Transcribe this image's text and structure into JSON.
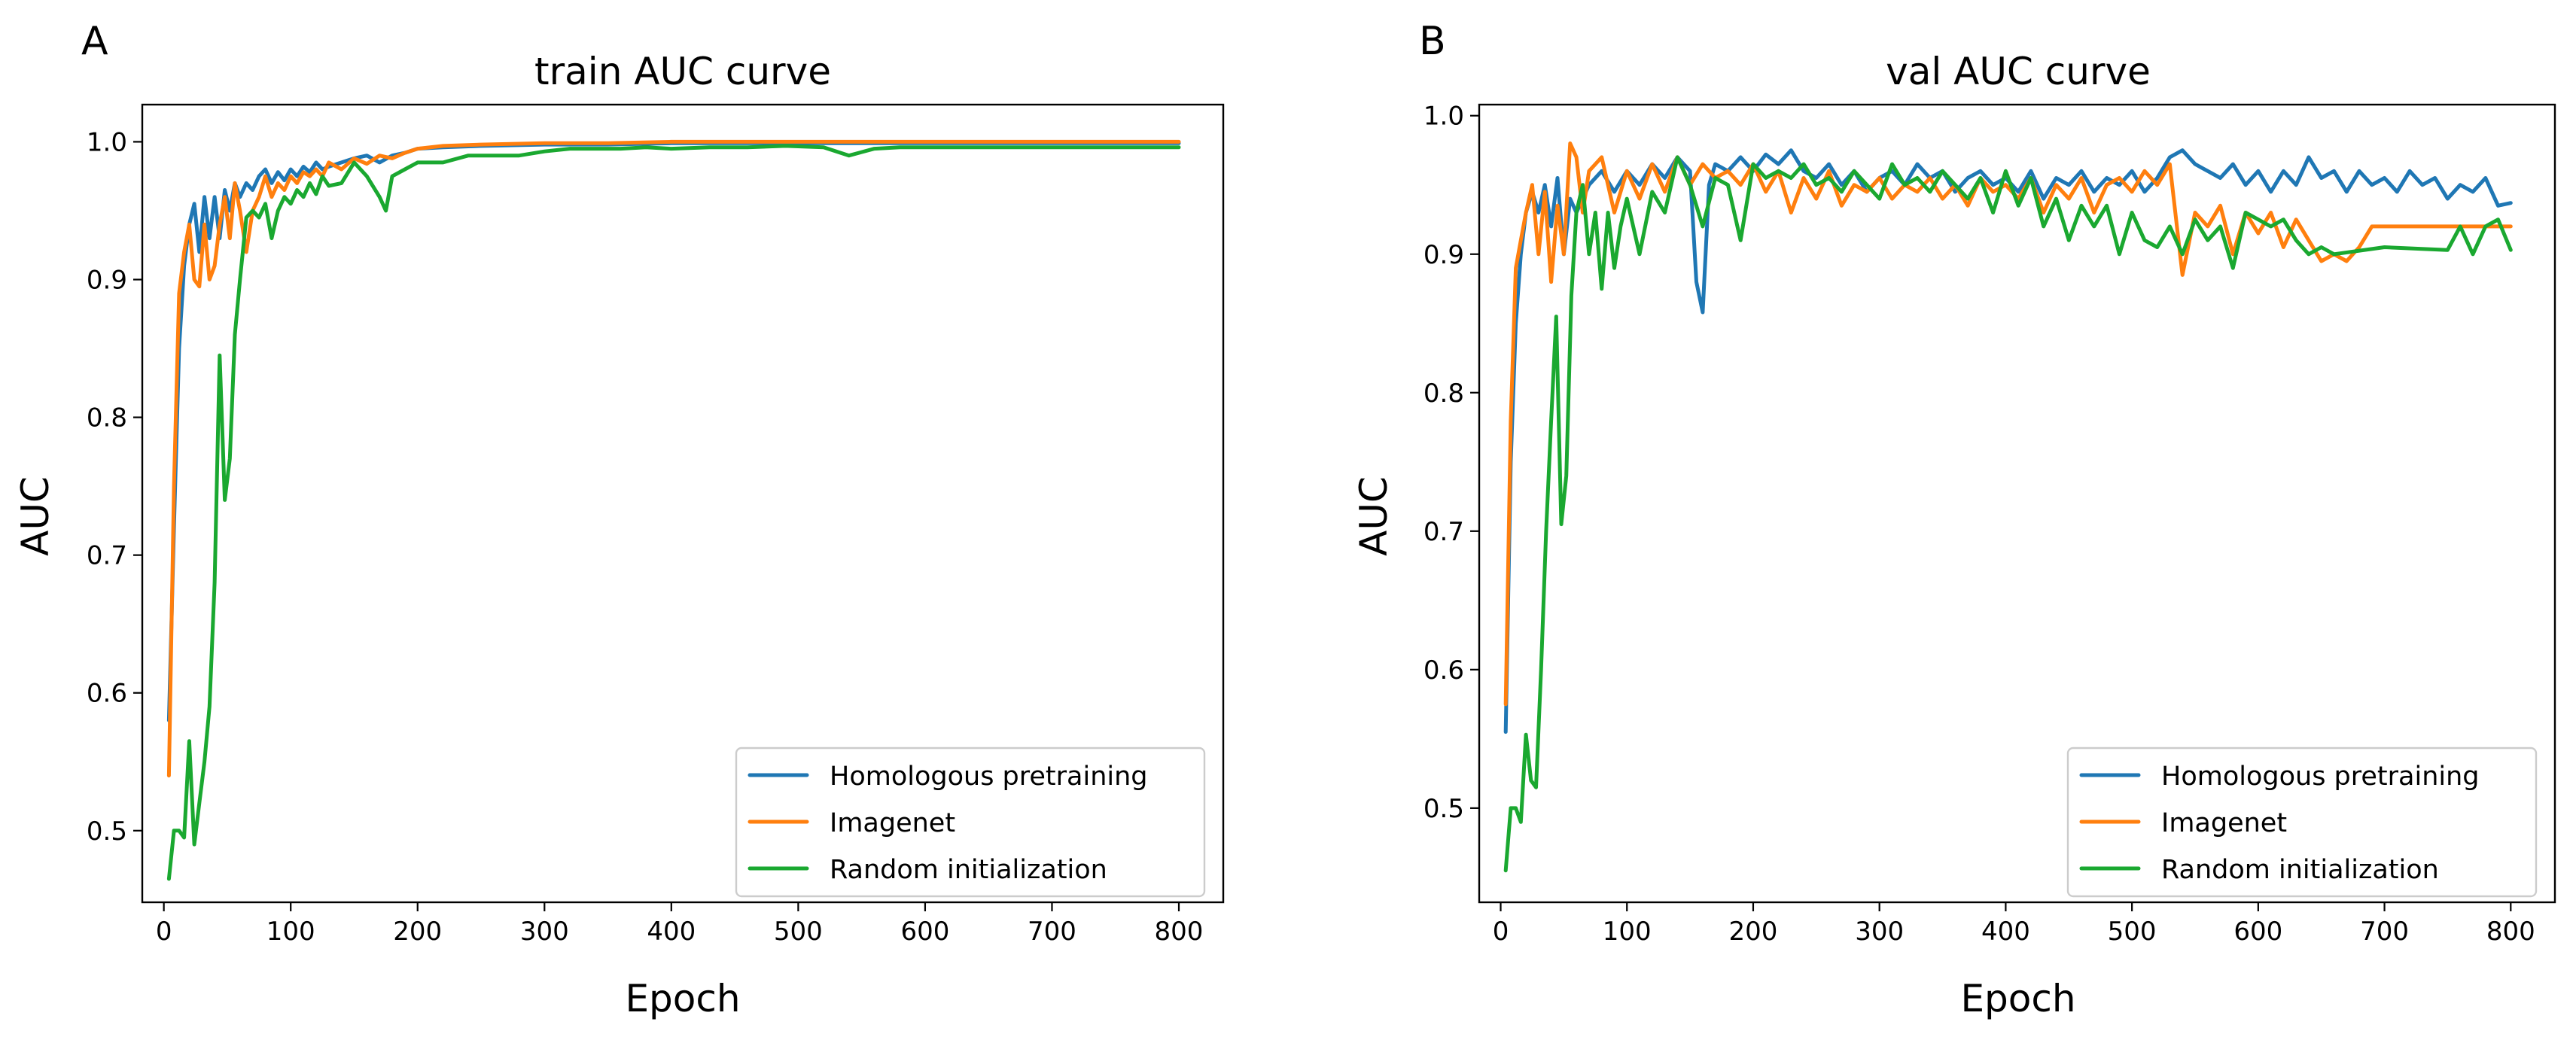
{
  "colors": {
    "homologous": "#1f77b4",
    "imagenet": "#ff7f0e",
    "random": "#1aa830"
  },
  "chart_data": [
    {
      "panel_label": "A",
      "type": "line",
      "title": "train AUC curve",
      "xlabel": "Epoch",
      "ylabel": "AUC",
      "xlim": [
        -17,
        835
      ],
      "ylim": [
        0.448,
        1.027
      ],
      "xticks": [
        0,
        100,
        200,
        300,
        400,
        500,
        600,
        700,
        800
      ],
      "yticks": [
        0.5,
        0.6,
        0.7,
        0.8,
        0.9,
        1.0
      ],
      "ytick_labels": [
        "0.5",
        "0.6",
        "0.7",
        "0.8",
        "0.9",
        "1.0"
      ],
      "grid": false,
      "legend_position": "lower-right",
      "series": [
        {
          "name": "Homologous pretraining",
          "color_key": "homologous",
          "x": [
            4,
            8,
            12,
            16,
            20,
            24,
            28,
            32,
            36,
            40,
            44,
            48,
            52,
            56,
            60,
            65,
            70,
            75,
            80,
            85,
            90,
            95,
            100,
            105,
            110,
            115,
            120,
            125,
            130,
            140,
            150,
            160,
            170,
            180,
            190,
            200,
            220,
            250,
            300,
            350,
            400,
            450,
            500,
            550,
            600,
            650,
            700,
            750,
            800
          ],
          "y": [
            0.58,
            0.72,
            0.85,
            0.91,
            0.94,
            0.955,
            0.92,
            0.96,
            0.93,
            0.96,
            0.93,
            0.965,
            0.95,
            0.97,
            0.96,
            0.97,
            0.965,
            0.975,
            0.98,
            0.97,
            0.978,
            0.972,
            0.98,
            0.975,
            0.982,
            0.978,
            0.985,
            0.98,
            0.982,
            0.985,
            0.988,
            0.99,
            0.985,
            0.99,
            0.992,
            0.995,
            0.996,
            0.997,
            0.998,
            0.998,
            0.999,
            0.999,
            0.999,
            0.999,
            0.999,
            0.999,
            0.999,
            0.999,
            0.999
          ]
        },
        {
          "name": "Imagenet",
          "color_key": "imagenet",
          "x": [
            4,
            8,
            12,
            16,
            20,
            24,
            28,
            32,
            36,
            40,
            44,
            48,
            52,
            56,
            60,
            65,
            70,
            75,
            80,
            85,
            90,
            95,
            100,
            105,
            110,
            115,
            120,
            125,
            130,
            140,
            150,
            160,
            170,
            180,
            190,
            200,
            220,
            250,
            300,
            350,
            400,
            450,
            500,
            550,
            600,
            650,
            700,
            750,
            800
          ],
          "y": [
            0.54,
            0.75,
            0.89,
            0.92,
            0.94,
            0.9,
            0.895,
            0.94,
            0.9,
            0.91,
            0.94,
            0.96,
            0.93,
            0.97,
            0.95,
            0.92,
            0.95,
            0.96,
            0.975,
            0.96,
            0.97,
            0.965,
            0.975,
            0.97,
            0.978,
            0.975,
            0.98,
            0.975,
            0.985,
            0.98,
            0.988,
            0.984,
            0.99,
            0.988,
            0.992,
            0.995,
            0.997,
            0.998,
            0.999,
            0.999,
            1.0,
            1.0,
            1.0,
            1.0,
            1.0,
            1.0,
            1.0,
            1.0,
            1.0
          ]
        },
        {
          "name": "Random initialization",
          "color_key": "random",
          "x": [
            4,
            8,
            12,
            16,
            20,
            24,
            28,
            32,
            36,
            40,
            44,
            48,
            52,
            56,
            60,
            65,
            70,
            75,
            80,
            85,
            90,
            95,
            100,
            105,
            110,
            115,
            120,
            125,
            130,
            140,
            150,
            160,
            170,
            175,
            180,
            190,
            200,
            220,
            240,
            260,
            280,
            300,
            320,
            340,
            360,
            380,
            400,
            430,
            460,
            490,
            520,
            540,
            560,
            580,
            600,
            650,
            700,
            750,
            800
          ],
          "y": [
            0.465,
            0.5,
            0.5,
            0.495,
            0.565,
            0.49,
            0.52,
            0.55,
            0.59,
            0.68,
            0.845,
            0.74,
            0.77,
            0.86,
            0.9,
            0.945,
            0.95,
            0.945,
            0.955,
            0.93,
            0.95,
            0.96,
            0.955,
            0.965,
            0.96,
            0.97,
            0.962,
            0.975,
            0.968,
            0.97,
            0.985,
            0.975,
            0.96,
            0.95,
            0.975,
            0.98,
            0.985,
            0.985,
            0.99,
            0.99,
            0.99,
            0.993,
            0.995,
            0.995,
            0.995,
            0.996,
            0.995,
            0.996,
            0.996,
            0.997,
            0.996,
            0.99,
            0.995,
            0.996,
            0.996,
            0.996,
            0.996,
            0.996,
            0.996
          ]
        }
      ]
    },
    {
      "panel_label": "B",
      "type": "line",
      "title": "val AUC curve",
      "xlabel": "Epoch",
      "ylabel": "AUC",
      "xlim": [
        -17,
        835
      ],
      "ylim": [
        0.432,
        1.008
      ],
      "xticks": [
        0,
        100,
        200,
        300,
        400,
        500,
        600,
        700,
        800
      ],
      "yticks": [
        0.5,
        0.6,
        0.7,
        0.8,
        0.9,
        1.0
      ],
      "ytick_labels": [
        "0.5",
        "0.6",
        "0.7",
        "0.8",
        "0.9",
        "1.0"
      ],
      "grid": false,
      "legend_position": "lower-right",
      "series": [
        {
          "name": "Homologous pretraining",
          "color_key": "homologous",
          "x": [
            4,
            8,
            12,
            16,
            20,
            25,
            30,
            35,
            40,
            45,
            50,
            55,
            60,
            70,
            80,
            90,
            100,
            110,
            120,
            130,
            140,
            150,
            155,
            160,
            165,
            170,
            180,
            190,
            200,
            210,
            220,
            230,
            240,
            250,
            260,
            270,
            280,
            290,
            300,
            310,
            320,
            330,
            340,
            350,
            360,
            370,
            380,
            390,
            400,
            410,
            420,
            430,
            440,
            450,
            460,
            470,
            480,
            490,
            500,
            510,
            520,
            530,
            540,
            550,
            560,
            570,
            580,
            590,
            600,
            610,
            620,
            630,
            640,
            650,
            660,
            670,
            680,
            690,
            700,
            710,
            720,
            730,
            740,
            750,
            760,
            770,
            780,
            790,
            800
          ],
          "y": [
            0.555,
            0.75,
            0.85,
            0.9,
            0.93,
            0.945,
            0.93,
            0.95,
            0.92,
            0.955,
            0.9,
            0.94,
            0.93,
            0.95,
            0.96,
            0.945,
            0.96,
            0.95,
            0.965,
            0.955,
            0.97,
            0.96,
            0.88,
            0.858,
            0.95,
            0.965,
            0.96,
            0.97,
            0.96,
            0.972,
            0.965,
            0.975,
            0.96,
            0.955,
            0.965,
            0.95,
            0.96,
            0.945,
            0.955,
            0.96,
            0.95,
            0.965,
            0.955,
            0.96,
            0.945,
            0.955,
            0.96,
            0.95,
            0.955,
            0.945,
            0.96,
            0.94,
            0.955,
            0.95,
            0.96,
            0.945,
            0.955,
            0.95,
            0.96,
            0.945,
            0.955,
            0.97,
            0.975,
            0.965,
            0.96,
            0.955,
            0.965,
            0.95,
            0.96,
            0.945,
            0.96,
            0.95,
            0.97,
            0.955,
            0.96,
            0.945,
            0.96,
            0.95,
            0.955,
            0.945,
            0.96,
            0.95,
            0.955,
            0.94,
            0.95,
            0.945,
            0.955,
            0.935,
            0.937
          ]
        },
        {
          "name": "Imagenet",
          "color_key": "imagenet",
          "x": [
            4,
            8,
            12,
            16,
            20,
            25,
            30,
            35,
            40,
            45,
            50,
            55,
            60,
            65,
            70,
            80,
            90,
            100,
            110,
            120,
            130,
            140,
            150,
            160,
            170,
            180,
            190,
            200,
            210,
            220,
            230,
            240,
            250,
            260,
            270,
            280,
            290,
            300,
            310,
            320,
            330,
            340,
            350,
            360,
            370,
            380,
            390,
            400,
            410,
            420,
            430,
            440,
            450,
            460,
            470,
            480,
            490,
            500,
            510,
            520,
            530,
            540,
            550,
            560,
            570,
            580,
            590,
            600,
            610,
            620,
            630,
            640,
            650,
            660,
            670,
            680,
            690,
            700,
            750,
            800
          ],
          "y": [
            0.575,
            0.78,
            0.89,
            0.91,
            0.93,
            0.95,
            0.9,
            0.945,
            0.88,
            0.935,
            0.9,
            0.98,
            0.97,
            0.93,
            0.96,
            0.97,
            0.93,
            0.96,
            0.94,
            0.965,
            0.945,
            0.97,
            0.95,
            0.965,
            0.955,
            0.96,
            0.95,
            0.965,
            0.945,
            0.96,
            0.93,
            0.955,
            0.94,
            0.96,
            0.935,
            0.95,
            0.945,
            0.955,
            0.94,
            0.95,
            0.945,
            0.955,
            0.94,
            0.95,
            0.935,
            0.955,
            0.945,
            0.95,
            0.94,
            0.955,
            0.93,
            0.95,
            0.94,
            0.955,
            0.93,
            0.95,
            0.955,
            0.945,
            0.96,
            0.95,
            0.965,
            0.885,
            0.93,
            0.92,
            0.935,
            0.9,
            0.93,
            0.915,
            0.93,
            0.905,
            0.925,
            0.91,
            0.895,
            0.9,
            0.895,
            0.905,
            0.92,
            0.92,
            0.92,
            0.92
          ]
        },
        {
          "name": "Random initialization",
          "color_key": "random",
          "x": [
            4,
            8,
            12,
            16,
            20,
            24,
            28,
            32,
            36,
            40,
            44,
            48,
            52,
            56,
            60,
            65,
            70,
            75,
            80,
            85,
            90,
            95,
            100,
            110,
            120,
            130,
            140,
            150,
            160,
            170,
            180,
            190,
            200,
            210,
            220,
            230,
            240,
            250,
            260,
            270,
            280,
            290,
            300,
            310,
            320,
            330,
            340,
            350,
            360,
            370,
            380,
            390,
            400,
            410,
            420,
            430,
            440,
            450,
            460,
            470,
            480,
            490,
            500,
            510,
            520,
            530,
            540,
            550,
            560,
            570,
            580,
            590,
            600,
            610,
            620,
            630,
            640,
            650,
            660,
            700,
            750,
            760,
            770,
            780,
            790,
            800
          ],
          "y": [
            0.455,
            0.5,
            0.5,
            0.49,
            0.553,
            0.52,
            0.515,
            0.6,
            0.7,
            0.78,
            0.855,
            0.705,
            0.74,
            0.87,
            0.93,
            0.95,
            0.9,
            0.93,
            0.875,
            0.93,
            0.89,
            0.92,
            0.94,
            0.9,
            0.945,
            0.93,
            0.97,
            0.95,
            0.92,
            0.955,
            0.95,
            0.91,
            0.965,
            0.955,
            0.96,
            0.955,
            0.965,
            0.95,
            0.955,
            0.945,
            0.96,
            0.95,
            0.94,
            0.965,
            0.95,
            0.955,
            0.945,
            0.96,
            0.95,
            0.94,
            0.955,
            0.93,
            0.96,
            0.935,
            0.955,
            0.92,
            0.94,
            0.91,
            0.935,
            0.92,
            0.935,
            0.9,
            0.93,
            0.91,
            0.905,
            0.92,
            0.9,
            0.925,
            0.91,
            0.92,
            0.89,
            0.93,
            0.925,
            0.92,
            0.925,
            0.91,
            0.9,
            0.905,
            0.9,
            0.905,
            0.903,
            0.92,
            0.9,
            0.92,
            0.925,
            0.903
          ]
        }
      ]
    }
  ]
}
